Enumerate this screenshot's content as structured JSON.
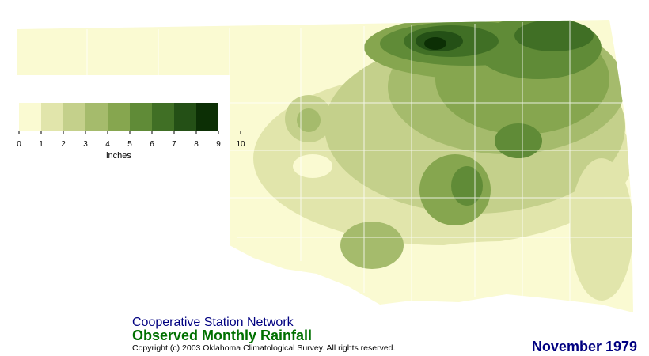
{
  "title": "Cooperative Station Network",
  "subtitle": "Observed Monthly Rainfall",
  "copyright": "Copyright (c) 2003 Oklahoma Climatological Survey. All rights reserved.",
  "date": "November 1979",
  "legend": {
    "unit": "inches",
    "ticks": [
      0,
      1,
      2,
      3,
      4,
      5,
      6,
      7,
      8,
      9,
      10
    ],
    "colors": [
      "#fafad2",
      "#e1e5ab",
      "#c4d08b",
      "#a5bb6c",
      "#86a64f",
      "#608b37",
      "#406f25",
      "#245016",
      "#0c2f05"
    ]
  }
}
